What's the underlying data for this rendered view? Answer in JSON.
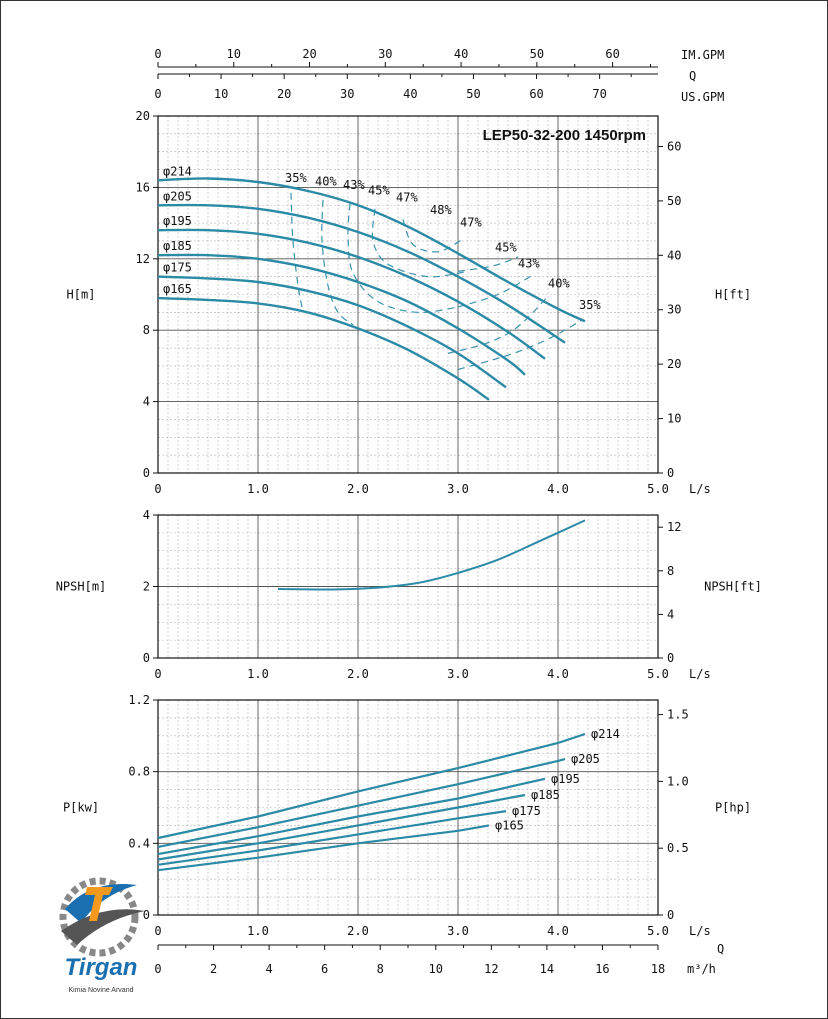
{
  "chart_data": [
    {
      "type": "line",
      "title": "LEP50-32-200 1450rpm",
      "top_axes": [
        {
          "label": "IM.GPM",
          "ticks": [
            "0",
            "10",
            "20",
            "30",
            "40",
            "50",
            "60"
          ]
        },
        {
          "label": "Q",
          "ticks": []
        },
        {
          "label": "US.GPM",
          "ticks": [
            "0",
            "10",
            "20",
            "30",
            "40",
            "50",
            "60",
            "70"
          ]
        }
      ],
      "xlabel": "L/s",
      "xticks": [
        "0",
        "1.0",
        "2.0",
        "3.0",
        "4.0",
        "5.0"
      ],
      "xlim": [
        0,
        5
      ],
      "ylabel_left": "H[m]",
      "yticks_left": [
        "0",
        "4",
        "8",
        "12",
        "16",
        "20"
      ],
      "ylim_left": [
        0,
        20
      ],
      "ylabel_right": "H[ft]",
      "yticks_right": [
        "0",
        "10",
        "20",
        "30",
        "40",
        "50",
        "60"
      ],
      "grid": true,
      "series": [
        {
          "name": "φ214",
          "x": [
            0,
            0.5,
            1,
            1.5,
            2,
            2.5,
            3,
            3.5,
            4,
            4.27
          ],
          "y": [
            16.4,
            16.5,
            16.3,
            15.8,
            15.0,
            13.8,
            12.3,
            10.7,
            9.2,
            8.5
          ]
        },
        {
          "name": "φ205",
          "x": [
            0,
            0.5,
            1,
            1.5,
            2,
            2.5,
            3,
            3.5,
            4.07
          ],
          "y": [
            15.0,
            15.0,
            14.8,
            14.3,
            13.5,
            12.4,
            11.0,
            9.4,
            7.3
          ]
        },
        {
          "name": "φ195",
          "x": [
            0,
            0.5,
            1,
            1.5,
            2,
            2.5,
            3,
            3.5,
            3.87
          ],
          "y": [
            13.6,
            13.6,
            13.4,
            12.9,
            12.1,
            11.0,
            9.6,
            7.9,
            6.4
          ]
        },
        {
          "name": "φ185",
          "x": [
            0,
            0.5,
            1,
            1.5,
            2,
            2.5,
            3,
            3.5,
            3.67
          ],
          "y": [
            12.2,
            12.2,
            12.0,
            11.5,
            10.7,
            9.6,
            8.1,
            6.3,
            5.5
          ]
        },
        {
          "name": "φ175",
          "x": [
            0,
            0.5,
            1,
            1.5,
            2,
            2.5,
            3,
            3.48
          ],
          "y": [
            11.0,
            10.9,
            10.7,
            10.2,
            9.4,
            8.2,
            6.7,
            4.8
          ]
        },
        {
          "name": "φ165",
          "x": [
            0,
            0.5,
            1,
            1.5,
            2,
            2.5,
            3,
            3.31
          ],
          "y": [
            9.8,
            9.7,
            9.5,
            9.0,
            8.1,
            6.9,
            5.3,
            4.1
          ]
        }
      ],
      "efficiency_labels": [
        {
          "text": "35%",
          "x": 1.27,
          "y": 16.3
        },
        {
          "text": "40%",
          "x": 1.57,
          "y": 16.1
        },
        {
          "text": "43%",
          "x": 1.85,
          "y": 15.9
        },
        {
          "text": "45%",
          "x": 2.1,
          "y": 15.6
        },
        {
          "text": "47%",
          "x": 2.38,
          "y": 15.2
        },
        {
          "text": "48%",
          "x": 2.72,
          "y": 14.5
        },
        {
          "text": "47%",
          "x": 3.02,
          "y": 13.8
        },
        {
          "text": "45%",
          "x": 3.37,
          "y": 12.4
        },
        {
          "text": "43%",
          "x": 3.6,
          "y": 11.5
        },
        {
          "text": "40%",
          "x": 3.9,
          "y": 10.4
        },
        {
          "text": "35%",
          "x": 4.21,
          "y": 9.2
        }
      ],
      "efficiency_contours": [
        {
          "label": "35%",
          "x": [
            1.33,
            1.35,
            1.4,
            1.45
          ],
          "y": [
            15.7,
            13.0,
            10.5,
            9.0
          ]
        },
        {
          "label": "40%",
          "x": [
            1.65,
            1.64,
            1.7,
            1.8,
            1.95
          ],
          "y": [
            15.3,
            13.0,
            10.5,
            9.0,
            8.3
          ]
        },
        {
          "label": "43%",
          "x": [
            1.92,
            1.9,
            1.95,
            2.2,
            2.6,
            3.0
          ],
          "y": [
            15.1,
            13.3,
            11.2,
            9.6,
            9.0,
            9.3
          ]
        },
        {
          "label": "45%",
          "x": [
            2.17,
            2.15,
            2.3,
            2.7,
            3.1
          ],
          "y": [
            14.8,
            13.0,
            11.7,
            11.0,
            11.3
          ]
        },
        {
          "label": "47%",
          "x": [
            2.45,
            2.55,
            2.8,
            3.05
          ],
          "y": [
            14.2,
            12.8,
            12.4,
            13.1
          ]
        },
        {
          "label": "45% R",
          "x": [
            3.0,
            3.35,
            3.6
          ],
          "y": [
            11.3,
            11.6,
            12.1
          ]
        },
        {
          "label": "43% R",
          "x": [
            3.0,
            3.4,
            3.75
          ],
          "y": [
            9.3,
            10.0,
            11.1
          ]
        },
        {
          "label": "40% R",
          "x": [
            2.9,
            3.3,
            3.6,
            3.9
          ],
          "y": [
            6.7,
            7.3,
            8.2,
            9.9
          ]
        },
        {
          "label": "35% R",
          "x": [
            3.0,
            3.5,
            3.9,
            4.25
          ],
          "y": [
            5.8,
            6.6,
            7.5,
            8.6
          ]
        }
      ]
    },
    {
      "type": "line",
      "xlabel": "L/s",
      "xticks": [
        "0",
        "1.0",
        "2.0",
        "3.0",
        "4.0",
        "5.0"
      ],
      "xlim": [
        0,
        5
      ],
      "ylabel_left": "NPSH[m]",
      "yticks_left": [
        "0",
        "2",
        "4"
      ],
      "ylim_left": [
        0,
        4
      ],
      "ylabel_right": "NPSH[ft]",
      "yticks_right": [
        "0",
        "4",
        "8",
        "12"
      ],
      "grid": true,
      "series": [
        {
          "name": "",
          "x": [
            1.2,
            1.5,
            1.8,
            2.2,
            2.6,
            3.0,
            3.4,
            3.8,
            4.27
          ],
          "y": [
            1.93,
            1.92,
            1.92,
            1.97,
            2.1,
            2.38,
            2.75,
            3.25,
            3.85
          ]
        }
      ]
    },
    {
      "type": "line",
      "xlabel": "L/s",
      "xticks": [
        "0",
        "1.0",
        "2.0",
        "3.0",
        "4.0",
        "5.0"
      ],
      "xlim": [
        0,
        5
      ],
      "ylabel_left": "P[kw]",
      "yticks_left": [
        "0",
        "0.4",
        "0.8",
        "1.2"
      ],
      "ylim_left": [
        0,
        1.2
      ],
      "ylabel_right": "P[hp]",
      "yticks_right": [
        "0",
        "0.5",
        "1.0",
        "1.5"
      ],
      "bottom_axis": {
        "label": "m³/h",
        "ticks": [
          "0",
          "2",
          "4",
          "6",
          "8",
          "10",
          "12",
          "14",
          "16",
          "18"
        ]
      },
      "q_label": "Q",
      "grid": true,
      "series": [
        {
          "name": "φ214",
          "x": [
            0,
            1,
            2,
            3,
            4,
            4.27
          ],
          "y": [
            0.43,
            0.55,
            0.69,
            0.82,
            0.96,
            1.01
          ]
        },
        {
          "name": "φ205",
          "x": [
            0,
            1,
            2,
            3,
            4,
            4.07
          ],
          "y": [
            0.38,
            0.49,
            0.61,
            0.73,
            0.86,
            0.87
          ]
        },
        {
          "name": "φ195",
          "x": [
            0,
            1,
            2,
            3,
            3.87
          ],
          "y": [
            0.34,
            0.44,
            0.55,
            0.65,
            0.76
          ]
        },
        {
          "name": "φ185",
          "x": [
            0,
            1,
            2,
            3,
            3.67
          ],
          "y": [
            0.31,
            0.4,
            0.5,
            0.6,
            0.67
          ]
        },
        {
          "name": "φ175",
          "x": [
            0,
            1,
            2,
            3,
            3.48
          ],
          "y": [
            0.28,
            0.36,
            0.45,
            0.54,
            0.58
          ]
        },
        {
          "name": "φ165",
          "x": [
            0,
            1,
            2,
            3,
            3.31
          ],
          "y": [
            0.25,
            0.32,
            0.4,
            0.47,
            0.5
          ]
        }
      ]
    }
  ],
  "logo": {
    "name": "Tirgan",
    "tagline": "Kimia Novine Arvand"
  },
  "colors": {
    "curve": "#2b8aa6",
    "grid_major": "#555555",
    "grid_minor": "#b5b5b5",
    "contour": "#3a93ad"
  }
}
